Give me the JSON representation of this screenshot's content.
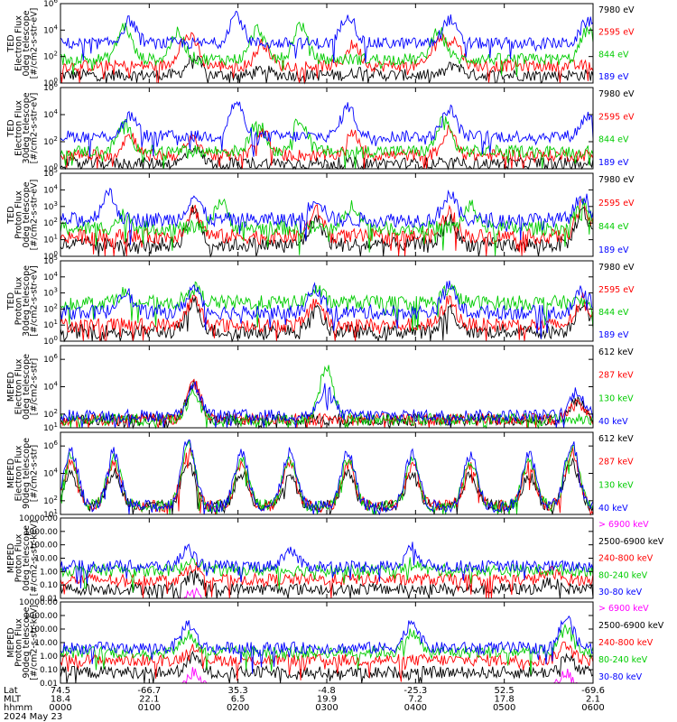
{
  "chart_data": [
    {
      "type": "line",
      "ylabel": [
        "TED",
        "Electron Flux",
        "0deg telescope",
        "[#/cm2-s-str-eV]"
      ],
      "yscale": "log",
      "ylim_exp": [
        0,
        6
      ],
      "ytick_exp": [
        0,
        2,
        4,
        6
      ],
      "series": [
        {
          "name": "7980 eV",
          "color": "#000000",
          "base_exp": 0.6,
          "peaks": [
            [
              0.25,
              1.3
            ],
            [
              0.38,
              0.4
            ],
            [
              0.57,
              0.4
            ],
            [
              0.74,
              0.8
            ]
          ]
        },
        {
          "name": "2595 eV",
          "color": "#ff0000",
          "base_exp": 1.3,
          "peaks": [
            [
              0.23,
              1.5
            ],
            [
              0.25,
              1.5
            ],
            [
              0.38,
              1.7
            ],
            [
              0.55,
              1.6
            ],
            [
              0.71,
              2.0
            ],
            [
              0.74,
              1.8
            ]
          ]
        },
        {
          "name": "844 eV",
          "color": "#00cc00",
          "base_exp": 1.8,
          "peaks": [
            [
              0.12,
              2.5
            ],
            [
              0.22,
              2.0
            ],
            [
              0.37,
              2.3
            ],
            [
              0.45,
              2.6
            ],
            [
              0.71,
              2.3
            ],
            [
              0.99,
              2.2
            ]
          ]
        },
        {
          "name": "189 eV",
          "color": "#0000ff",
          "base_exp": 3.0,
          "peaks": [
            [
              0.13,
              1.7
            ],
            [
              0.33,
              2.2
            ],
            [
              0.54,
              2.2
            ],
            [
              0.73,
              1.8
            ],
            [
              0.99,
              1.7
            ]
          ]
        }
      ]
    },
    {
      "type": "line",
      "ylabel": [
        "TED",
        "Electron Flux",
        "30deg telescope",
        "[#/cm2-s-str-eV]"
      ],
      "yscale": "log",
      "ylim_exp": [
        0,
        6
      ],
      "ytick_exp": [
        0,
        2,
        4,
        6
      ],
      "series": [
        {
          "name": "7980 eV",
          "color": "#000000",
          "base_exp": 0.4,
          "peaks": [
            [
              0.25,
              1.2
            ]
          ]
        },
        {
          "name": "2595 eV",
          "color": "#ff0000",
          "base_exp": 1.0,
          "peaks": [
            [
              0.13,
              1.5
            ],
            [
              0.25,
              1.2
            ],
            [
              0.38,
              1.8
            ],
            [
              0.55,
              1.6
            ],
            [
              0.73,
              1.8
            ]
          ]
        },
        {
          "name": "844 eV",
          "color": "#00cc00",
          "base_exp": 1.3,
          "peaks": [
            [
              0.12,
              2.0
            ],
            [
              0.37,
              2.2
            ],
            [
              0.45,
              2.4
            ],
            [
              0.72,
              2.3
            ]
          ]
        },
        {
          "name": "189 eV",
          "color": "#0000ff",
          "base_exp": 2.4,
          "peaks": [
            [
              0.13,
              1.5
            ],
            [
              0.33,
              2.5
            ],
            [
              0.54,
              2.2
            ],
            [
              0.73,
              2.0
            ],
            [
              0.99,
              1.5
            ]
          ]
        }
      ]
    },
    {
      "type": "line",
      "ylabel": [
        "TED",
        "Proton Flux",
        "0deg telescope",
        "[#/cm2-s-str-eV]"
      ],
      "yscale": "log",
      "ylim_exp": [
        0,
        5
      ],
      "ytick_exp": [
        0,
        1,
        2,
        3,
        4,
        5
      ],
      "series": [
        {
          "name": "7980 eV",
          "color": "#000000",
          "base_exp": 0.7,
          "peaks": [
            [
              0.25,
              2.0
            ],
            [
              0.48,
              1.5
            ],
            [
              0.73,
              1.5
            ],
            [
              0.98,
              2.0
            ]
          ]
        },
        {
          "name": "2595 eV",
          "color": "#ff0000",
          "base_exp": 1.2,
          "peaks": [
            [
              0.25,
              1.6
            ],
            [
              0.48,
              1.5
            ],
            [
              0.73,
              1.5
            ],
            [
              0.98,
              1.8
            ]
          ]
        },
        {
          "name": "844 eV",
          "color": "#00cc00",
          "base_exp": 1.7,
          "peaks": [
            [
              0.12,
              0.8
            ],
            [
              0.3,
              1.6
            ],
            [
              0.55,
              1.4
            ],
            [
              0.77,
              1.3
            ],
            [
              0.98,
              1.5
            ]
          ]
        },
        {
          "name": "189 eV",
          "color": "#0000ff",
          "base_exp": 2.2,
          "peaks": [
            [
              0.09,
              1.6
            ],
            [
              0.25,
              1.4
            ],
            [
              0.48,
              1.3
            ],
            [
              0.73,
              1.5
            ],
            [
              0.98,
              1.4
            ]
          ]
        }
      ]
    },
    {
      "type": "line",
      "ylabel": [
        "TED",
        "Proton Flux",
        "30deg telescope",
        "[#/cm2-s-str-eV]"
      ],
      "yscale": "log",
      "ylim_exp": [
        0,
        5
      ],
      "ytick_exp": [
        0,
        1,
        2,
        3,
        4,
        5
      ],
      "series": [
        {
          "name": "7980 eV",
          "color": "#000000",
          "base_exp": 0.6,
          "peaks": [
            [
              0.25,
              1.8
            ],
            [
              0.48,
              1.3
            ],
            [
              0.73,
              1.4
            ],
            [
              0.98,
              1.8
            ]
          ]
        },
        {
          "name": "2595 eV",
          "color": "#ff0000",
          "base_exp": 1.0,
          "peaks": [
            [
              0.25,
              1.6
            ],
            [
              0.48,
              1.5
            ],
            [
              0.73,
              1.5
            ],
            [
              0.98,
              1.6
            ]
          ]
        },
        {
          "name": "844 eV",
          "color": "#00cc00",
          "base_exp": 2.4,
          "peaks": [
            [
              0.12,
              0.6
            ],
            [
              0.25,
              0.9
            ],
            [
              0.48,
              0.8
            ],
            [
              0.73,
              0.9
            ]
          ]
        },
        {
          "name": "189 eV",
          "color": "#0000ff",
          "base_exp": 1.8,
          "peaks": [
            [
              0.12,
              1.4
            ],
            [
              0.25,
              1.5
            ],
            [
              0.48,
              1.5
            ],
            [
              0.73,
              1.6
            ],
            [
              0.98,
              1.3
            ]
          ]
        }
      ]
    },
    {
      "type": "line",
      "ylabel": [
        "MEPED",
        "Electron Flux",
        "0deg telescope",
        "[#/cm2-s-str]"
      ],
      "yscale": "log",
      "ylim_exp": [
        1,
        7
      ],
      "ytick_exp": [
        1,
        2,
        4,
        6
      ],
      "series": [
        {
          "name": "612 keV",
          "color": "#000000",
          "base_exp": 1.6,
          "peaks": [
            [
              0.25,
              2.6
            ],
            [
              0.97,
              1.4
            ]
          ]
        },
        {
          "name": "287 keV",
          "color": "#ff0000",
          "base_exp": 1.6,
          "peaks": [
            [
              0.25,
              2.8
            ],
            [
              0.97,
              1.2
            ]
          ]
        },
        {
          "name": "130 keV",
          "color": "#00cc00",
          "base_exp": 1.6,
          "peaks": [
            [
              0.5,
              4.0
            ],
            [
              0.25,
              1.8
            ]
          ]
        },
        {
          "name": "40 keV",
          "color": "#0000ff",
          "base_exp": 1.9,
          "peaks": [
            [
              0.25,
              2.2
            ],
            [
              0.5,
              2.0
            ],
            [
              0.97,
              1.8
            ]
          ]
        }
      ]
    },
    {
      "type": "line",
      "ylabel": [
        "MEPED",
        "Electron Flux",
        "90deg telescope",
        "[#/cm2-s-str]"
      ],
      "yscale": "log",
      "ylim_exp": [
        1,
        7
      ],
      "ytick_exp": [
        1,
        2,
        4,
        6
      ],
      "series": [
        {
          "name": "612 keV",
          "color": "#000000",
          "base_exp": 1.6,
          "peaks": [
            [
              0.02,
              2.6
            ],
            [
              0.1,
              2.5
            ],
            [
              0.24,
              3.2
            ],
            [
              0.34,
              2.4
            ],
            [
              0.43,
              2.4
            ],
            [
              0.54,
              2.4
            ],
            [
              0.66,
              2.3
            ],
            [
              0.77,
              2.2
            ],
            [
              0.88,
              2.2
            ],
            [
              0.96,
              3.2
            ]
          ]
        },
        {
          "name": "287 keV",
          "color": "#ff0000",
          "base_exp": 1.6,
          "peaks": [
            [
              0.02,
              3.2
            ],
            [
              0.1,
              3.1
            ],
            [
              0.24,
              4.2
            ],
            [
              0.34,
              3.1
            ],
            [
              0.43,
              3.1
            ],
            [
              0.54,
              3.1
            ],
            [
              0.66,
              3.0
            ],
            [
              0.77,
              3.0
            ],
            [
              0.88,
              3.0
            ],
            [
              0.96,
              4.0
            ]
          ]
        },
        {
          "name": "130 keV",
          "color": "#00cc00",
          "base_exp": 1.6,
          "peaks": [
            [
              0.02,
              3.6
            ],
            [
              0.1,
              3.5
            ],
            [
              0.24,
              4.6
            ],
            [
              0.34,
              3.5
            ],
            [
              0.43,
              3.5
            ],
            [
              0.54,
              3.5
            ],
            [
              0.66,
              3.4
            ],
            [
              0.77,
              3.4
            ],
            [
              0.88,
              3.3
            ],
            [
              0.96,
              4.4
            ]
          ]
        },
        {
          "name": "40 keV",
          "color": "#0000ff",
          "base_exp": 1.6,
          "peaks": [
            [
              0.02,
              4.0
            ],
            [
              0.1,
              3.9
            ],
            [
              0.24,
              4.9
            ],
            [
              0.34,
              3.9
            ],
            [
              0.43,
              3.9
            ],
            [
              0.54,
              3.9
            ],
            [
              0.66,
              3.8
            ],
            [
              0.77,
              3.8
            ],
            [
              0.88,
              3.7
            ],
            [
              0.96,
              4.7
            ]
          ]
        }
      ]
    },
    {
      "type": "line",
      "ylabel": [
        "MEPED",
        "Proton Flux",
        "0deg telescope",
        "[#/cm2-s-str-keV]"
      ],
      "yscale": "log",
      "ylim_exp": [
        -2,
        4
      ],
      "ytick_labels": [
        "0.01",
        "0.10",
        "1.00",
        "10.00",
        "100.00",
        "1000.00",
        "10000.00"
      ],
      "series": [
        {
          "name": "> 6900 keV",
          "color": "#ff00ff",
          "base_exp": -2.5,
          "peaks": [
            [
              0.25,
              1.2
            ]
          ]
        },
        {
          "name": "2500-6900 keV",
          "color": "#000000",
          "base_exp": -1.3,
          "peaks": [
            [
              0.25,
              1.0
            ],
            [
              0.92,
              0.5
            ]
          ]
        },
        {
          "name": "240-800 keV",
          "color": "#ff0000",
          "base_exp": -0.6,
          "peaks": [
            [
              0.25,
              1.0
            ],
            [
              0.92,
              0.6
            ]
          ]
        },
        {
          "name": "80-240 keV",
          "color": "#00cc00",
          "base_exp": 0.1,
          "peaks": [
            [
              0.25,
              0.9
            ],
            [
              0.66,
              0.6
            ]
          ]
        },
        {
          "name": "30-80 keV",
          "color": "#0000ff",
          "base_exp": 0.4,
          "peaks": [
            [
              0.24,
              1.3
            ],
            [
              0.43,
              1.2
            ],
            [
              0.66,
              1.4
            ]
          ]
        }
      ]
    },
    {
      "type": "line",
      "ylabel": [
        "MEPED",
        "Proton Flux",
        "90deg telescope",
        "[#/cm2-s-str-keV]"
      ],
      "yscale": "log",
      "ylim_exp": [
        -2,
        4
      ],
      "ytick_labels": [
        "0.01",
        "0.10",
        "1.00",
        "10.00",
        "100.00",
        "1000.00",
        "10000.00"
      ],
      "series": [
        {
          "name": "> 6900 keV",
          "color": "#ff00ff",
          "base_exp": -2.5,
          "peaks": [
            [
              0.25,
              1.3
            ],
            [
              0.95,
              1.2
            ]
          ]
        },
        {
          "name": "2500-6900 keV",
          "color": "#000000",
          "base_exp": -1.2,
          "peaks": [
            [
              0.25,
              1.1
            ],
            [
              0.95,
              1.1
            ]
          ]
        },
        {
          "name": "240-800 keV",
          "color": "#ff0000",
          "base_exp": -0.3,
          "peaks": [
            [
              0.25,
              1.1
            ],
            [
              0.95,
              1.2
            ]
          ]
        },
        {
          "name": "80-240 keV",
          "color": "#00cc00",
          "base_exp": 0.3,
          "peaks": [
            [
              0.24,
              1.3
            ],
            [
              0.66,
              1.4
            ],
            [
              0.95,
              1.6
            ]
          ]
        },
        {
          "name": "30-80 keV",
          "color": "#0000ff",
          "base_exp": 0.6,
          "peaks": [
            [
              0.24,
              1.8
            ],
            [
              0.66,
              2.0
            ],
            [
              0.95,
              2.2
            ]
          ]
        }
      ]
    }
  ],
  "footer": {
    "rows": [
      {
        "label": "Lat",
        "values": [
          "74.5",
          "-66.7",
          "35.3",
          "-4.8",
          "-25.3",
          "52.5",
          "-69.6"
        ]
      },
      {
        "label": "MLT",
        "values": [
          "18.4",
          "22.1",
          "6.5",
          "19.9",
          "7.2",
          "17.8",
          "2.1"
        ]
      },
      {
        "label": "hhmm",
        "values": [
          "0000",
          "0100",
          "0200",
          "0300",
          "0400",
          "0500",
          "0600"
        ]
      }
    ],
    "date": "2024 May 23"
  }
}
